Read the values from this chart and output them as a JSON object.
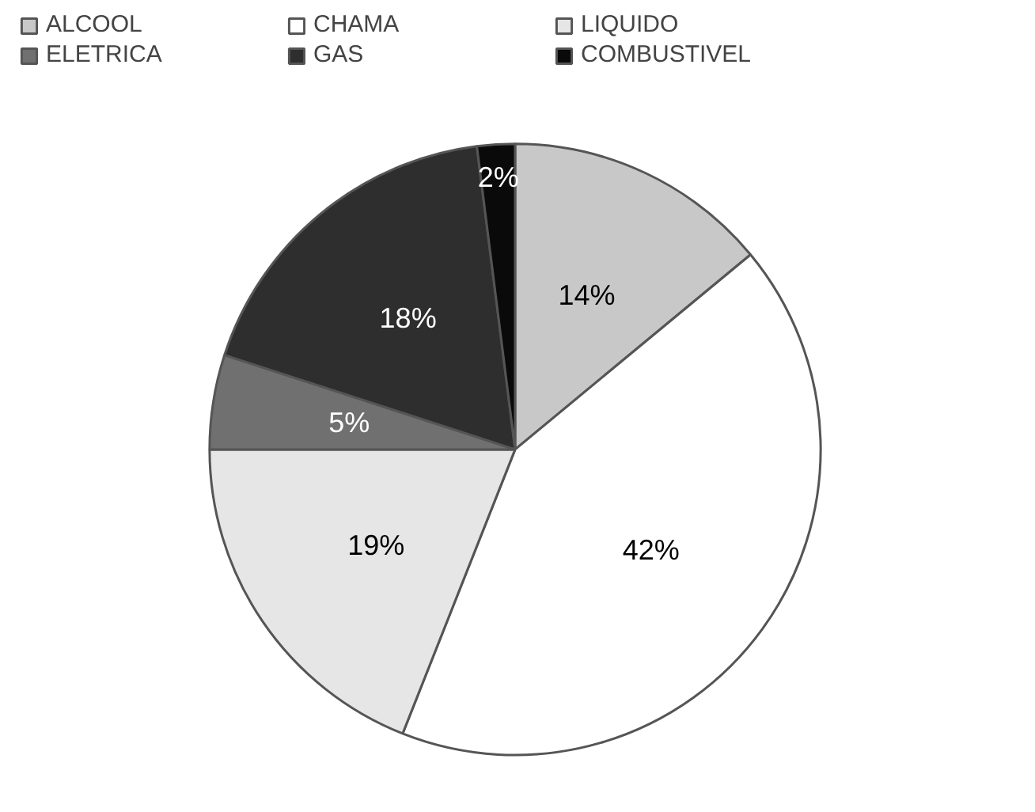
{
  "chart_data": {
    "type": "pie",
    "categories": [
      "ALCOOL",
      "CHAMA",
      "LIQUIDO",
      "ELETRICA",
      "GAS",
      "COMBUSTIVEL"
    ],
    "values": [
      14,
      42,
      19,
      5,
      18,
      2
    ],
    "colors": [
      "#c8c8c8",
      "#ffffff",
      "#e6e6e6",
      "#707070",
      "#2e2e2e",
      "#0a0a0a"
    ],
    "value_labels": [
      "14%",
      "42%",
      "19%",
      "5%",
      "18%",
      "2%"
    ],
    "legend": "top"
  }
}
